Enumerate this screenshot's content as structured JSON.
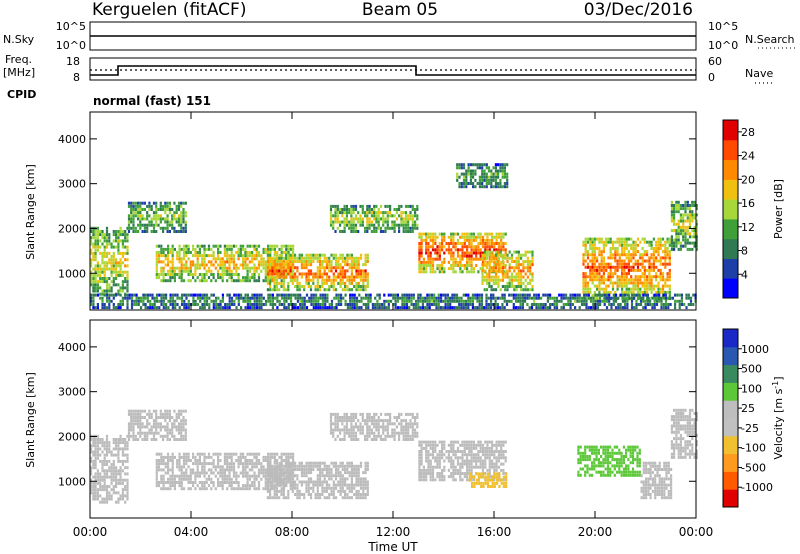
{
  "header": {
    "station": "Kerguelen (fitACF)",
    "beam": "Beam 05",
    "date": "03/Dec/2016"
  },
  "nsky_panel": {
    "left_label": "N.Sky",
    "left_ticks": [
      "10^5",
      "10^0"
    ],
    "right_label": "N.Search",
    "right_ticks": [
      "10^5",
      "10^0"
    ]
  },
  "freq_panel": {
    "left_label_1": "Freq.",
    "left_label_2": "[MHz]",
    "left_ticks": [
      "18",
      "8"
    ],
    "right_label": "Nave",
    "right_ticks": [
      "60",
      "0"
    ]
  },
  "cpid": {
    "label": "CPID",
    "mode": "normal (fast) 151"
  },
  "colors": {
    "power_scale": [
      "#0000ff",
      "#1e3ea8",
      "#2f7a52",
      "#3fa03a",
      "#a6d83a",
      "#f0c010",
      "#ff8a00",
      "#ff4a00",
      "#e00000"
    ],
    "velocity_scale": [
      "#e00000",
      "#ff5a00",
      "#ff9a20",
      "#f0c030",
      "#c0c0c0",
      "#bebebe",
      "#5cc838",
      "#3a8a60",
      "#2a58b0",
      "#1a28c8"
    ],
    "ground_scatter": "#bbbbbb"
  },
  "chart_data": [
    {
      "type": "heatmap",
      "panel": "power",
      "xlabel": "",
      "ylabel": "Slant Range [km]",
      "x_ticks": [
        "00:00",
        "04:00",
        "08:00",
        "12:00",
        "16:00",
        "20:00",
        "00:00"
      ],
      "xlim": [
        0,
        24
      ],
      "y_ticks": [
        "1000",
        "2000",
        "3000",
        "4000"
      ],
      "ylim": [
        180,
        4600
      ],
      "colorbar": {
        "label": "Power [dB]",
        "ticks": [
          "4",
          "8",
          "12",
          "16",
          "20",
          "24",
          "28"
        ],
        "range": [
          0,
          30
        ]
      },
      "regions": [
        {
          "t0": 0.0,
          "t1": 1.5,
          "r0": 500,
          "r1": 2000,
          "p": 18
        },
        {
          "t0": 1.5,
          "t1": 3.8,
          "r0": 1900,
          "r1": 2600,
          "p": 14
        },
        {
          "t0": 2.6,
          "t1": 8.0,
          "r0": 800,
          "r1": 1600,
          "p": 20
        },
        {
          "t0": 7.0,
          "t1": 11.0,
          "r0": 600,
          "r1": 1400,
          "p": 24
        },
        {
          "t0": 9.5,
          "t1": 13.0,
          "r0": 1900,
          "r1": 2500,
          "p": 16
        },
        {
          "t0": 13.0,
          "t1": 16.5,
          "r0": 1000,
          "r1": 1900,
          "p": 26
        },
        {
          "t0": 15.5,
          "t1": 17.5,
          "r0": 600,
          "r1": 1500,
          "p": 22
        },
        {
          "t0": 14.5,
          "t1": 16.5,
          "r0": 2900,
          "r1": 3400,
          "p": 12
        },
        {
          "t0": 19.5,
          "t1": 23.0,
          "r0": 400,
          "r1": 1800,
          "p": 24
        },
        {
          "t0": 23.0,
          "t1": 24.0,
          "r0": 1500,
          "r1": 2600,
          "p": 16
        },
        {
          "t0": 0.0,
          "t1": 24.0,
          "r0": 200,
          "r1": 500,
          "p": 10
        }
      ]
    },
    {
      "type": "heatmap",
      "panel": "velocity",
      "xlabel": "Time UT",
      "ylabel": "Slant Range [km]",
      "x_ticks": [
        "00:00",
        "04:00",
        "08:00",
        "12:00",
        "16:00",
        "20:00",
        "00:00"
      ],
      "xlim": [
        0,
        24
      ],
      "y_ticks": [
        "1000",
        "2000",
        "3000",
        "4000"
      ],
      "ylim": [
        180,
        4600
      ],
      "colorbar": {
        "label": "Velocity [m s^-1]",
        "ticks": [
          "1000",
          "500",
          "100",
          "25",
          "-25",
          "-100",
          "-500",
          "-1000"
        ]
      },
      "regions": [
        {
          "t0": 0.0,
          "t1": 1.5,
          "r0": 500,
          "r1": 2000,
          "v": 0
        },
        {
          "t0": 1.5,
          "t1": 3.8,
          "r0": 1900,
          "r1": 2600,
          "v": 0
        },
        {
          "t0": 2.6,
          "t1": 8.0,
          "r0": 800,
          "r1": 1600,
          "v": 0
        },
        {
          "t0": 7.0,
          "t1": 11.0,
          "r0": 600,
          "r1": 1400,
          "v": 0
        },
        {
          "t0": 9.5,
          "t1": 13.0,
          "r0": 1900,
          "r1": 2500,
          "v": 0
        },
        {
          "t0": 13.0,
          "t1": 16.5,
          "r0": 1000,
          "r1": 1900,
          "v": 0
        },
        {
          "t0": 15.0,
          "t1": 16.5,
          "r0": 850,
          "r1": 1150,
          "v": -80
        },
        {
          "t0": 19.3,
          "t1": 21.8,
          "r0": 1100,
          "r1": 1800,
          "v": 120
        },
        {
          "t0": 21.8,
          "t1": 23.0,
          "r0": 600,
          "r1": 1400,
          "v": 0
        },
        {
          "t0": 23.0,
          "t1": 24.0,
          "r0": 1500,
          "r1": 2600,
          "v": 0
        }
      ]
    }
  ]
}
